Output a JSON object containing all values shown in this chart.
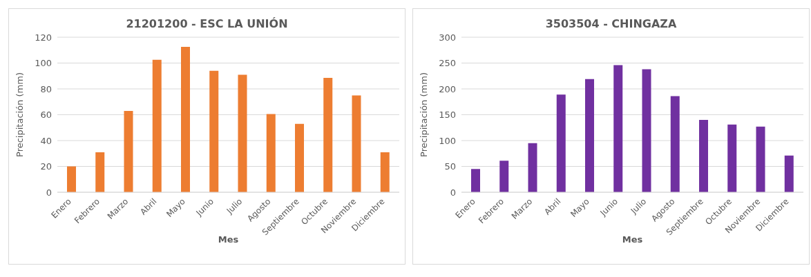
{
  "chart_data": [
    {
      "type": "bar",
      "title": "21201200 - ESC LA UNIÓN",
      "xlabel": "Mes",
      "ylabel": "Precipitación (mm)",
      "categories": [
        "Enero",
        "Febrero",
        "Marzo",
        "Abril",
        "Mayo",
        "Junio",
        "Julio",
        "Agosto",
        "Septiembre",
        "Octubre",
        "Noviembre",
        "Diciembre"
      ],
      "series": [
        {
          "color": "#ed7d31",
          "values": [
            20,
            31,
            63,
            102.5,
            112.5,
            94,
            91,
            60.5,
            53,
            88.5,
            75,
            31
          ]
        }
      ],
      "ylim": [
        0,
        120
      ],
      "yticks": [
        0,
        20,
        40,
        60,
        80,
        100,
        120
      ],
      "grid": "y",
      "legend": false
    },
    {
      "type": "bar",
      "title": "3503504 - CHINGAZA",
      "xlabel": "Mes",
      "ylabel": "Precipitación (mm)",
      "categories": [
        "Enero",
        "Febrero",
        "Marzo",
        "Abril",
        "Mayo",
        "Junio",
        "Julio",
        "Agosto",
        "Septiembre",
        "Octubre",
        "Noviembre",
        "Diciembre"
      ],
      "series": [
        {
          "color": "#7030a0",
          "values": [
            45,
            61,
            95,
            189,
            219,
            246,
            238,
            186,
            140,
            131,
            127,
            71
          ]
        }
      ],
      "ylim": [
        0,
        300
      ],
      "yticks": [
        0,
        50,
        100,
        150,
        200,
        250,
        300
      ],
      "grid": "y",
      "legend": false
    }
  ]
}
